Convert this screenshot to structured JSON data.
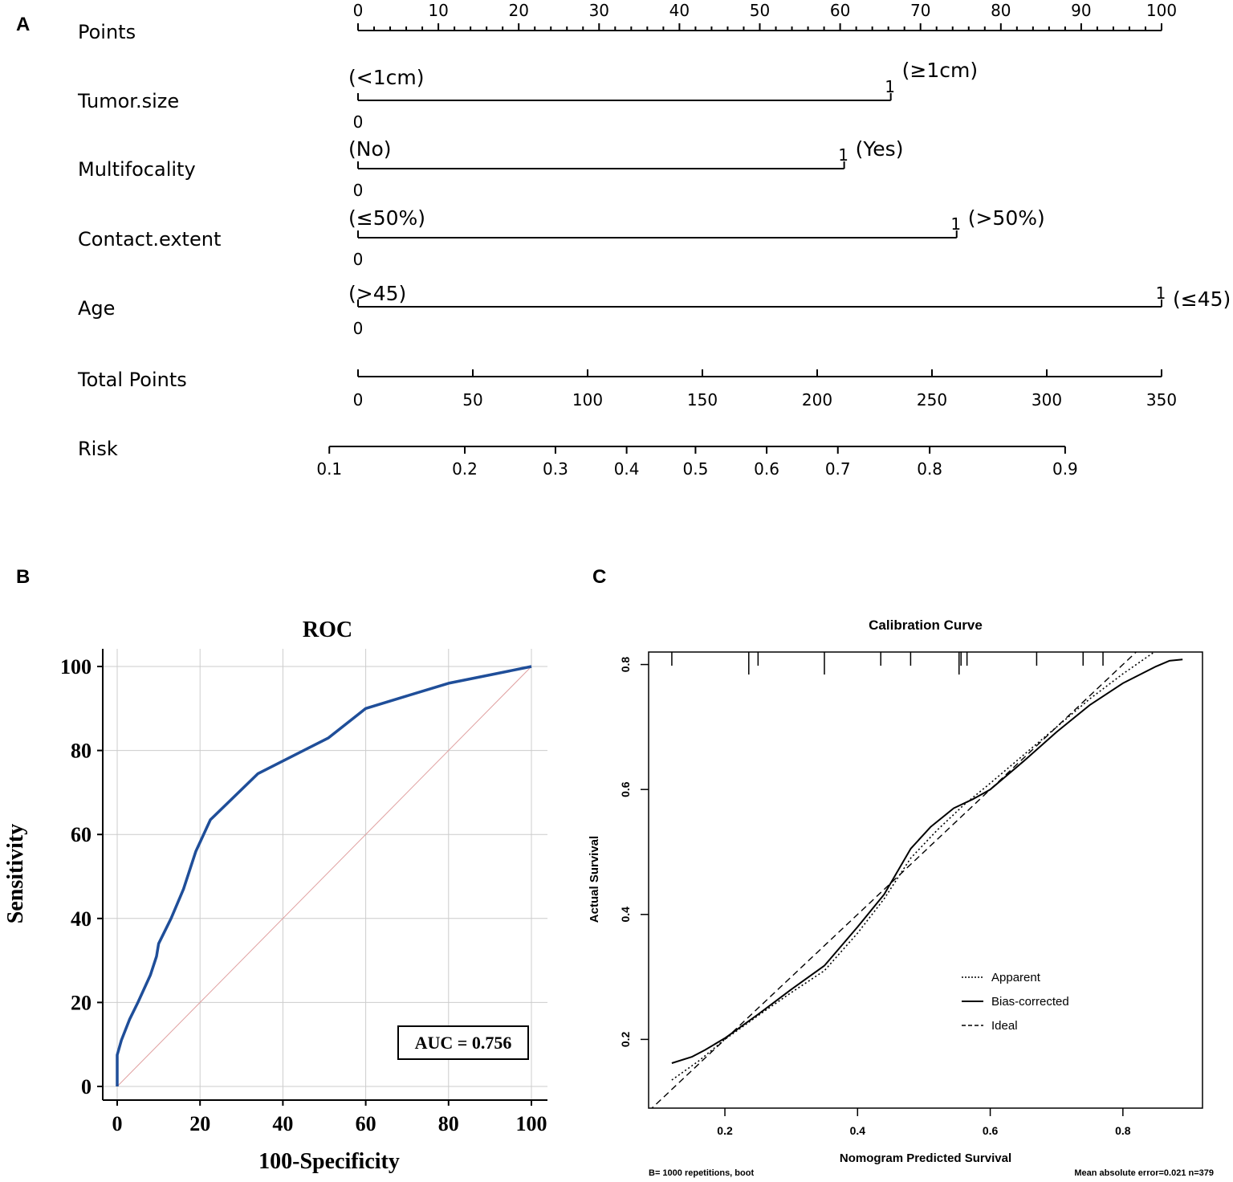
{
  "panels": {
    "a": "A",
    "b": "B",
    "c": "C"
  },
  "chart_data": [
    {
      "type": "nomogram",
      "panel": "A",
      "points_scale": {
        "label": "Points",
        "range": [
          0,
          100
        ],
        "major_ticks": [
          0,
          10,
          20,
          30,
          40,
          50,
          60,
          70,
          80,
          90,
          100
        ],
        "minor_step": 2,
        "tick_labels": [
          "0",
          "10",
          "20",
          "30",
          "40",
          "50",
          "60",
          "70",
          "80",
          "90",
          "100"
        ]
      },
      "variables": [
        {
          "name": "Tumor.size",
          "points": 66.3,
          "low_value": "0",
          "high_value": "1",
          "low_text": "(<1cm)",
          "high_text": "(≥1cm)"
        },
        {
          "name": "Multifocality",
          "points": 60.5,
          "low_value": "0",
          "high_value": "1",
          "low_text": "(No)",
          "high_text": "(Yes)"
        },
        {
          "name": "Contact.extent",
          "points": 74.5,
          "low_value": "0",
          "high_value": "1",
          "low_text": "(≤50%)",
          "high_text": "(>50%)"
        },
        {
          "name": "Age",
          "points": 100,
          "low_value": "0",
          "high_value": "1",
          "low_text": "(>45)",
          "high_text": "(≤45)"
        }
      ],
      "total_points": {
        "label": "Total Points",
        "range": [
          0,
          350
        ],
        "ticks": [
          0,
          50,
          100,
          150,
          200,
          250,
          300,
          350
        ],
        "tick_labels": [
          "0",
          "50",
          "100",
          "150",
          "200",
          "250",
          "300",
          "350"
        ]
      },
      "risk": {
        "label": "Risk",
        "ticks": [
          {
            "label": "0.1",
            "total_points": -12.5
          },
          {
            "label": "0.2",
            "total_points": 46.5
          },
          {
            "label": "0.3",
            "total_points": 86
          },
          {
            "label": "0.4",
            "total_points": 117
          },
          {
            "label": "0.5",
            "total_points": 147
          },
          {
            "label": "0.6",
            "total_points": 178
          },
          {
            "label": "0.7",
            "total_points": 209
          },
          {
            "label": "0.8",
            "total_points": 249
          },
          {
            "label": "0.9",
            "total_points": 308
          }
        ]
      }
    },
    {
      "type": "line",
      "panel": "B",
      "title": "ROC",
      "xlabel": "100-Specificity",
      "ylabel": "Sensitivity",
      "xlim": [
        0,
        100
      ],
      "ylim": [
        0,
        100
      ],
      "x_ticks": [
        0,
        20,
        40,
        60,
        80,
        100
      ],
      "y_ticks": [
        0,
        20,
        40,
        60,
        80,
        100
      ],
      "grid": true,
      "auc_label": "AUC = 0.756",
      "series": [
        {
          "name": "ROC curve",
          "color": "#1f4e99",
          "x": [
            0,
            0,
            1,
            3,
            5,
            8,
            9.5,
            10,
            13,
            16,
            19,
            22.5,
            34,
            51,
            60,
            70,
            80,
            90,
            100
          ],
          "y": [
            0,
            7.5,
            11,
            16,
            20,
            26.5,
            31,
            34,
            40,
            47,
            56,
            63.5,
            74.5,
            83,
            90,
            93,
            96,
            98,
            100
          ]
        },
        {
          "name": "Reference",
          "color": "#e0a0a0",
          "x": [
            0,
            100
          ],
          "y": [
            0,
            100
          ]
        }
      ]
    },
    {
      "type": "line",
      "panel": "C",
      "title": "Calibration Curve",
      "xlabel": "Nomogram Predicted Survival",
      "ylabel": "Actual Survival",
      "xlim": [
        0.085,
        0.92
      ],
      "ylim": [
        0.09,
        0.82
      ],
      "x_ticks": [
        0.2,
        0.4,
        0.6,
        0.8
      ],
      "x_tick_labels": [
        "0.2",
        "0.4",
        "0.6",
        "0.8"
      ],
      "y_ticks": [
        0.2,
        0.4,
        0.6,
        0.8
      ],
      "y_tick_labels": [
        "0.2",
        "0.4",
        "0.6",
        "0.8"
      ],
      "footnote_left": "B= 1000 repetitions, boot",
      "footnote_right": "Mean absolute error=0.021 n=379",
      "rug_x": [
        0.12,
        0.236,
        0.25,
        0.35,
        0.435,
        0.48,
        0.553,
        0.556,
        0.565,
        0.67,
        0.74,
        0.77
      ],
      "rug_long": [
        0.236,
        0.35,
        0.553
      ],
      "legend": [
        "Apparent",
        "Bias-corrected",
        "Ideal"
      ],
      "series": [
        {
          "name": "Apparent",
          "style": "dotted",
          "x": [
            0.12,
            0.16,
            0.2,
            0.25,
            0.3,
            0.35,
            0.4,
            0.44,
            0.48,
            0.52,
            0.56,
            0.6,
            0.65,
            0.7,
            0.75,
            0.8,
            0.85,
            0.89
          ],
          "y": [
            0.135,
            0.165,
            0.2,
            0.238,
            0.275,
            0.31,
            0.37,
            0.425,
            0.49,
            0.535,
            0.575,
            0.61,
            0.655,
            0.7,
            0.745,
            0.785,
            0.822,
            0.852
          ]
        },
        {
          "name": "Bias-corrected",
          "style": "solid",
          "x": [
            0.12,
            0.15,
            0.17,
            0.2,
            0.25,
            0.3,
            0.35,
            0.4,
            0.44,
            0.48,
            0.51,
            0.545,
            0.575,
            0.6,
            0.65,
            0.7,
            0.75,
            0.8,
            0.85,
            0.87,
            0.89
          ],
          "y": [
            0.162,
            0.172,
            0.183,
            0.202,
            0.24,
            0.28,
            0.318,
            0.38,
            0.432,
            0.505,
            0.54,
            0.57,
            0.585,
            0.6,
            0.645,
            0.692,
            0.735,
            0.77,
            0.797,
            0.806,
            0.808
          ]
        },
        {
          "name": "Ideal",
          "style": "dashed",
          "x": [
            0.085,
            0.92
          ],
          "y": [
            0.085,
            0.92
          ]
        }
      ]
    }
  ]
}
